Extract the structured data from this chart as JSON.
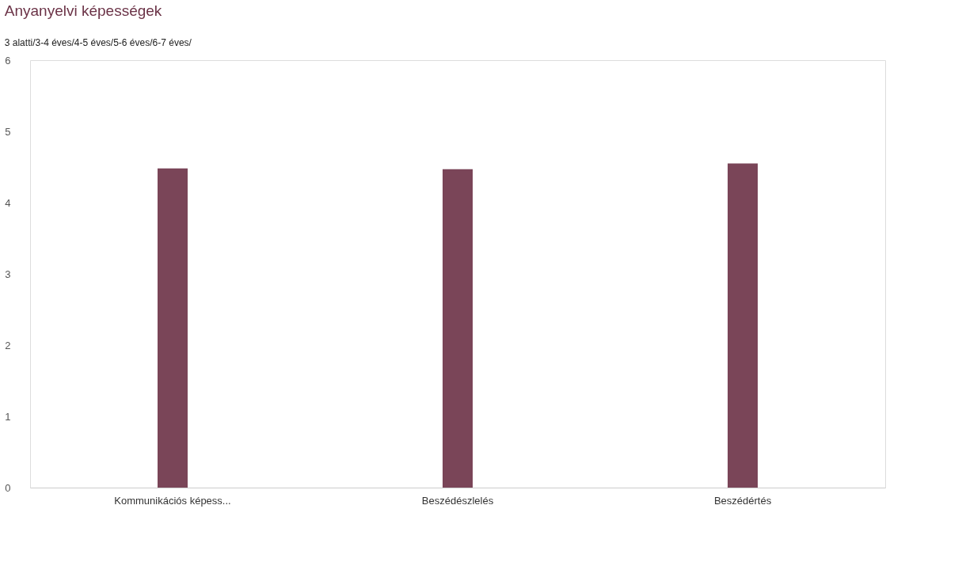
{
  "chart_data": {
    "type": "bar",
    "title": "Anyanyelvi képességek",
    "subtitle": "3 alatti/3-4 éves/4-5 éves/5-6 éves/6-7 éves/",
    "categories": [
      "Kommunikációs képess...",
      "Beszédészlelés",
      "Beszédértés"
    ],
    "values": [
      4.48,
      4.47,
      4.55
    ],
    "color": "#7a4558",
    "ylim": [
      0,
      6
    ],
    "yticks": [
      0,
      1,
      2,
      3,
      4,
      5,
      6
    ],
    "grid": false
  }
}
